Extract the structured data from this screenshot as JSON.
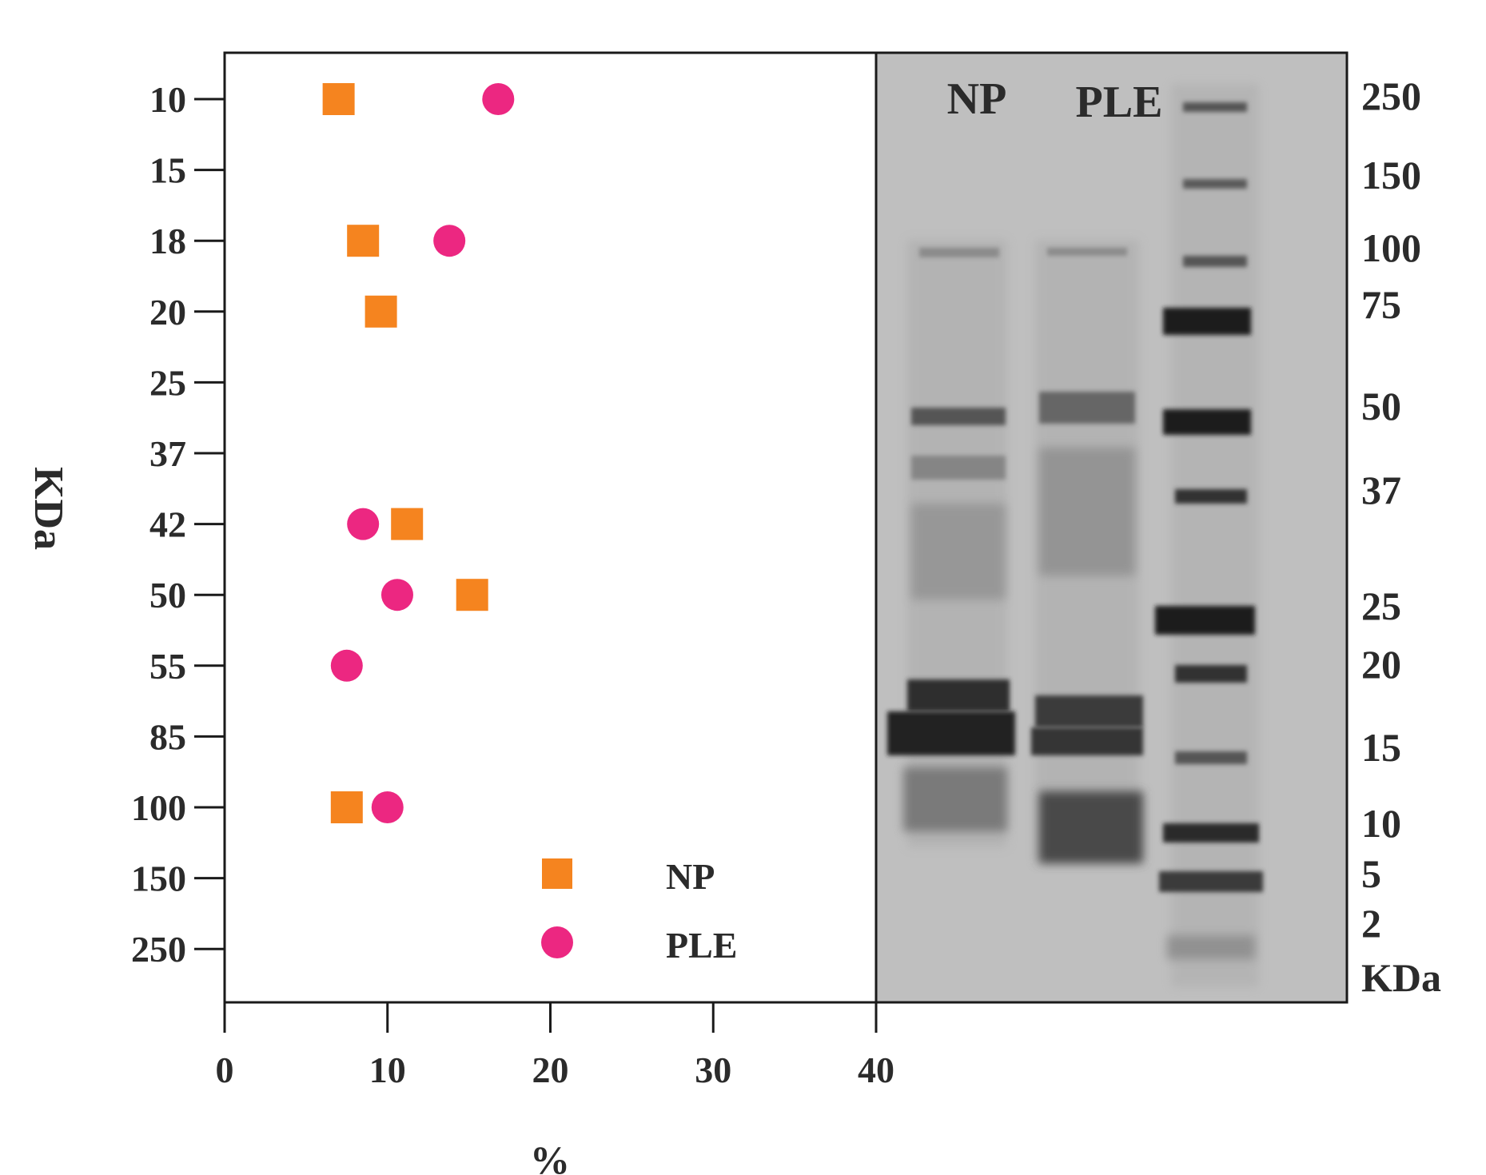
{
  "chart_data": {
    "type": "scatter",
    "xlabel": "%",
    "ylabel": "KDa",
    "xlim": [
      0,
      40
    ],
    "x_ticks": [
      "0",
      "10",
      "20",
      "30",
      "40"
    ],
    "y_categories": [
      "10",
      "15",
      "18",
      "20",
      "25",
      "37",
      "42",
      "50",
      "55",
      "85",
      "100",
      "150",
      "250"
    ],
    "series": [
      {
        "name": "NP",
        "marker": "square",
        "color": "#f5841f",
        "points": [
          {
            "kda": "10",
            "percent": 7.0
          },
          {
            "kda": "18",
            "percent": 8.5
          },
          {
            "kda": "20",
            "percent": 9.6
          },
          {
            "kda": "42",
            "percent": 11.2
          },
          {
            "kda": "50",
            "percent": 15.2
          },
          {
            "kda": "100",
            "percent": 7.5
          }
        ]
      },
      {
        "name": "PLE",
        "marker": "circle",
        "color": "#ec2781",
        "points": [
          {
            "kda": "10",
            "percent": 16.8
          },
          {
            "kda": "18",
            "percent": 13.8
          },
          {
            "kda": "42",
            "percent": 8.5
          },
          {
            "kda": "50",
            "percent": 10.6
          },
          {
            "kda": "55",
            "percent": 7.5
          },
          {
            "kda": "100",
            "percent": 10.0
          }
        ]
      }
    ],
    "legend": {
      "placement": "bottom-right",
      "entries": [
        "NP",
        "PLE"
      ]
    },
    "gel": {
      "lane_labels": [
        "NP",
        "PLE"
      ],
      "marker_labels": [
        "250",
        "150",
        "100",
        "75",
        "50",
        "37",
        "25",
        "20",
        "15",
        "10",
        "5",
        "2"
      ],
      "unit_label": "KDa"
    }
  }
}
